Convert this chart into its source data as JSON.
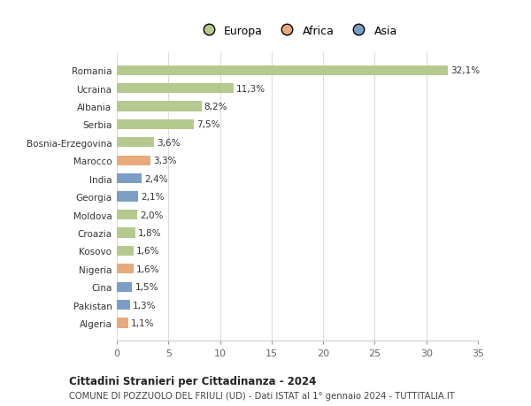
{
  "countries": [
    "Romania",
    "Ucraina",
    "Albania",
    "Serbia",
    "Bosnia-Erzegovina",
    "Marocco",
    "India",
    "Georgia",
    "Moldova",
    "Croazia",
    "Kosovo",
    "Nigeria",
    "Cina",
    "Pakistan",
    "Algeria"
  ],
  "values": [
    32.1,
    11.3,
    8.2,
    7.5,
    3.6,
    3.3,
    2.4,
    2.1,
    2.0,
    1.8,
    1.6,
    1.6,
    1.5,
    1.3,
    1.1
  ],
  "labels": [
    "32,1%",
    "11,3%",
    "8,2%",
    "7,5%",
    "3,6%",
    "3,3%",
    "2,4%",
    "2,1%",
    "2,0%",
    "1,8%",
    "1,6%",
    "1,6%",
    "1,5%",
    "1,3%",
    "1,1%"
  ],
  "continents": [
    "Europa",
    "Europa",
    "Europa",
    "Europa",
    "Europa",
    "Africa",
    "Asia",
    "Asia",
    "Europa",
    "Europa",
    "Europa",
    "Africa",
    "Asia",
    "Asia",
    "Africa"
  ],
  "colors": {
    "Europa": "#b5c98e",
    "Africa": "#e8a97c",
    "Asia": "#7b9ec4"
  },
  "title1": "Cittadini Stranieri per Cittadinanza - 2024",
  "title2": "COMUNE DI POZZUOLO DEL FRIULI (UD) - Dati ISTAT al 1° gennaio 2024 - TUTTITALIA.IT",
  "xlim": [
    0,
    35
  ],
  "xticks": [
    0,
    5,
    10,
    15,
    20,
    25,
    30,
    35
  ],
  "bg_color": "#ffffff",
  "plot_bg_color": "#ffffff",
  "grid_color": "#dddddd"
}
